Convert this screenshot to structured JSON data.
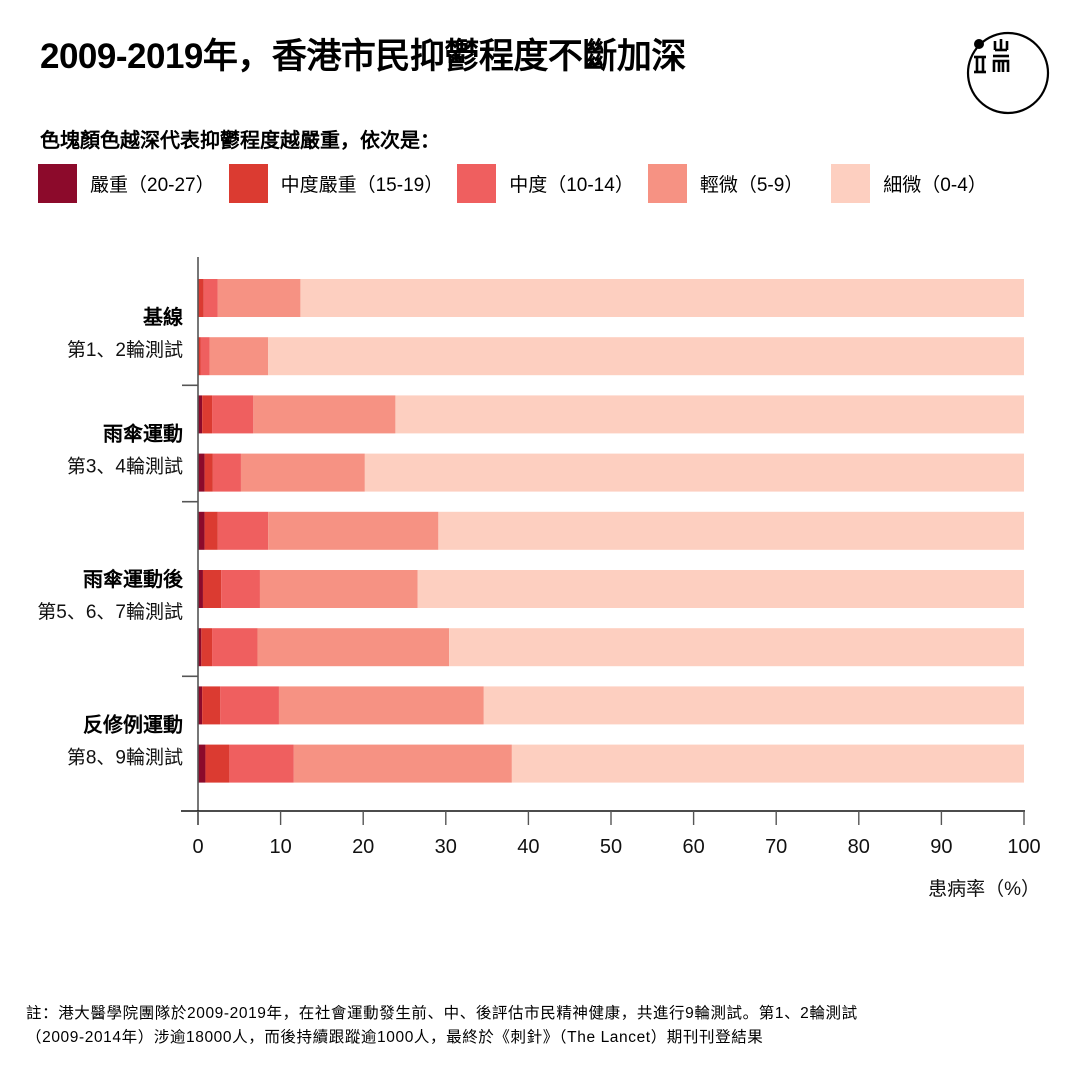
{
  "header": {
    "title": "2009-2019年，香港市民抑鬱程度不斷加深",
    "subtitle": "色塊顏色越深代表抑鬱程度越嚴重，依次是：",
    "logo_name": "端 (Initium) logo"
  },
  "legend": [
    {
      "label": "嚴重（20-27）",
      "color": "#8c0a2b"
    },
    {
      "label": "中度嚴重（15-19）",
      "color": "#db3b31"
    },
    {
      "label": "中度（10-14）",
      "color": "#ef5f5f"
    },
    {
      "label": "輕微（5-9）",
      "color": "#f69283"
    },
    {
      "label": "細微（0-4）",
      "color": "#fdcfc0"
    }
  ],
  "footnote": {
    "line1": "註：港大醫學院團隊於2009-2019年，在社會運動發生前、中、後評估市民精神健康，共進行9輪測試。第1、2輪測試",
    "line2": "（2009-2014年）涉逾18000人，而後持續跟蹤逾1000人，最終於《刺針》（The Lancet）期刊刊登結果"
  },
  "chart_data": {
    "type": "bar",
    "orientation": "horizontal",
    "stacked": true,
    "title": "2009-2019年，香港市民抑鬱程度不斷加深",
    "xlabel": "患病率（%）",
    "ylabel": "",
    "xlim": [
      0,
      100
    ],
    "xticks": [
      0,
      10,
      20,
      30,
      40,
      50,
      60,
      70,
      80,
      90,
      100
    ],
    "grid": false,
    "legend_position": "top",
    "groups": [
      {
        "name": "基線",
        "sub": "第1、2輪測試",
        "rounds": [
          1,
          2
        ]
      },
      {
        "name": "雨傘運動",
        "sub": "第3、4輪測試",
        "rounds": [
          3,
          4
        ]
      },
      {
        "name": "雨傘運動後",
        "sub": "第5、6、7輪測試",
        "rounds": [
          5,
          6,
          7
        ]
      },
      {
        "name": "反修例運動",
        "sub": "第8、9輪測試",
        "rounds": [
          8,
          9
        ]
      }
    ],
    "categories": [
      "第1輪",
      "第2輪",
      "第3輪",
      "第4輪",
      "第5輪",
      "第6輪",
      "第7輪",
      "第8輪",
      "第9輪"
    ],
    "series": [
      {
        "name": "嚴重（20-27）",
        "color": "#8c0a2b",
        "values": [
          0.0,
          0.0,
          0.5,
          0.8,
          0.8,
          0.6,
          0.4,
          0.5,
          0.9
        ]
      },
      {
        "name": "中度嚴重（15-19）",
        "color": "#db3b31",
        "values": [
          0.7,
          0.3,
          1.2,
          1.0,
          1.6,
          2.2,
          1.3,
          2.2,
          2.9
        ]
      },
      {
        "name": "中度（10-14）",
        "color": "#ef5f5f",
        "values": [
          1.7,
          1.1,
          5.0,
          3.4,
          6.1,
          4.7,
          5.5,
          7.1,
          7.8
        ]
      },
      {
        "name": "輕微（5-9）",
        "color": "#f69283",
        "values": [
          10.0,
          7.1,
          17.2,
          15.0,
          20.6,
          19.1,
          23.2,
          24.8,
          26.4
        ]
      },
      {
        "name": "細微（0-4）",
        "color": "#fdcfc0",
        "values": [
          87.6,
          91.5,
          76.1,
          79.8,
          70.9,
          73.4,
          69.6,
          65.4,
          62.0
        ]
      }
    ]
  }
}
